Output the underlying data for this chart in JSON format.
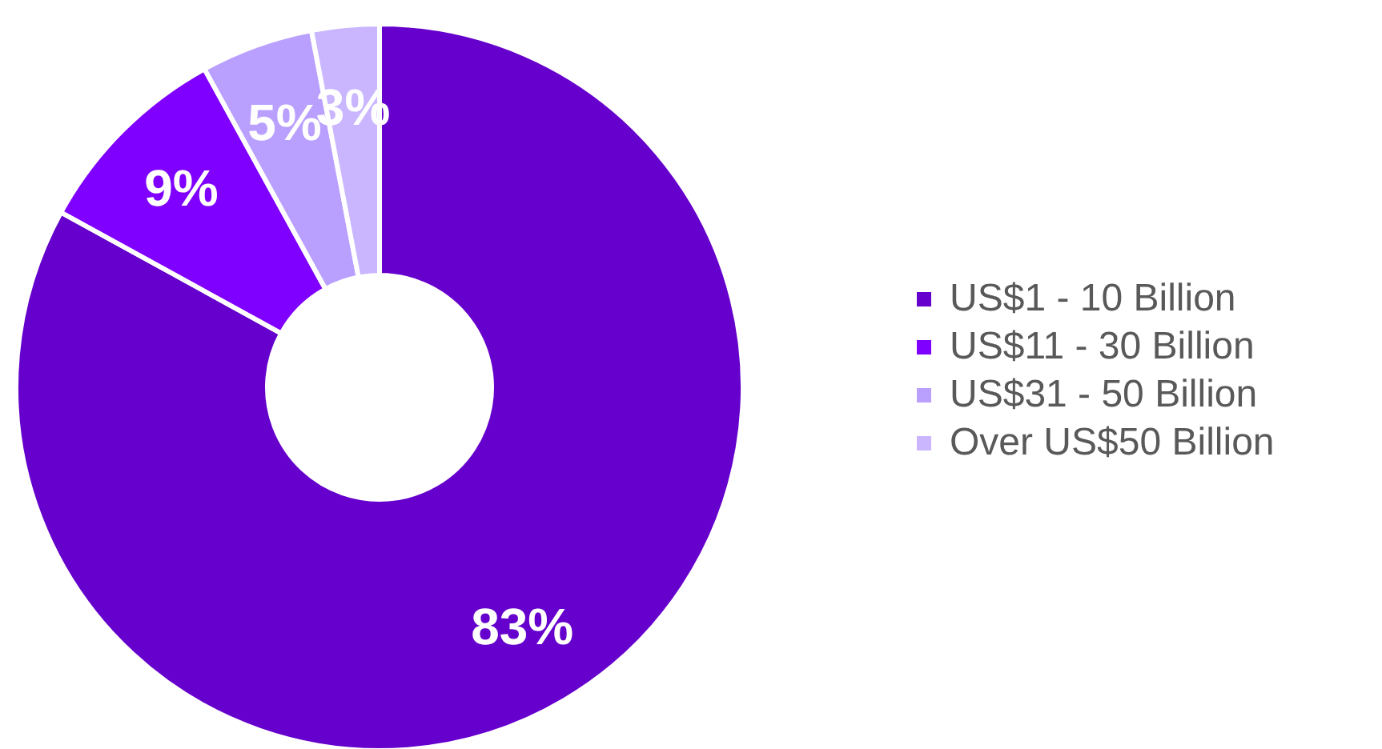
{
  "chart_data": {
    "type": "donut",
    "categories": [
      "US$1 - 10 Billion",
      "US$11 - 30 Billion",
      "US$31 - 50 Billion",
      "Over US$50 Billion"
    ],
    "values": [
      83,
      9,
      5,
      3
    ],
    "colors": [
      "#6600cc",
      "#8000ff",
      "#b9a0ff",
      "#c9b6ff"
    ],
    "value_labels": [
      "83%",
      "9%",
      "5%",
      "3%"
    ],
    "legend": "right"
  }
}
